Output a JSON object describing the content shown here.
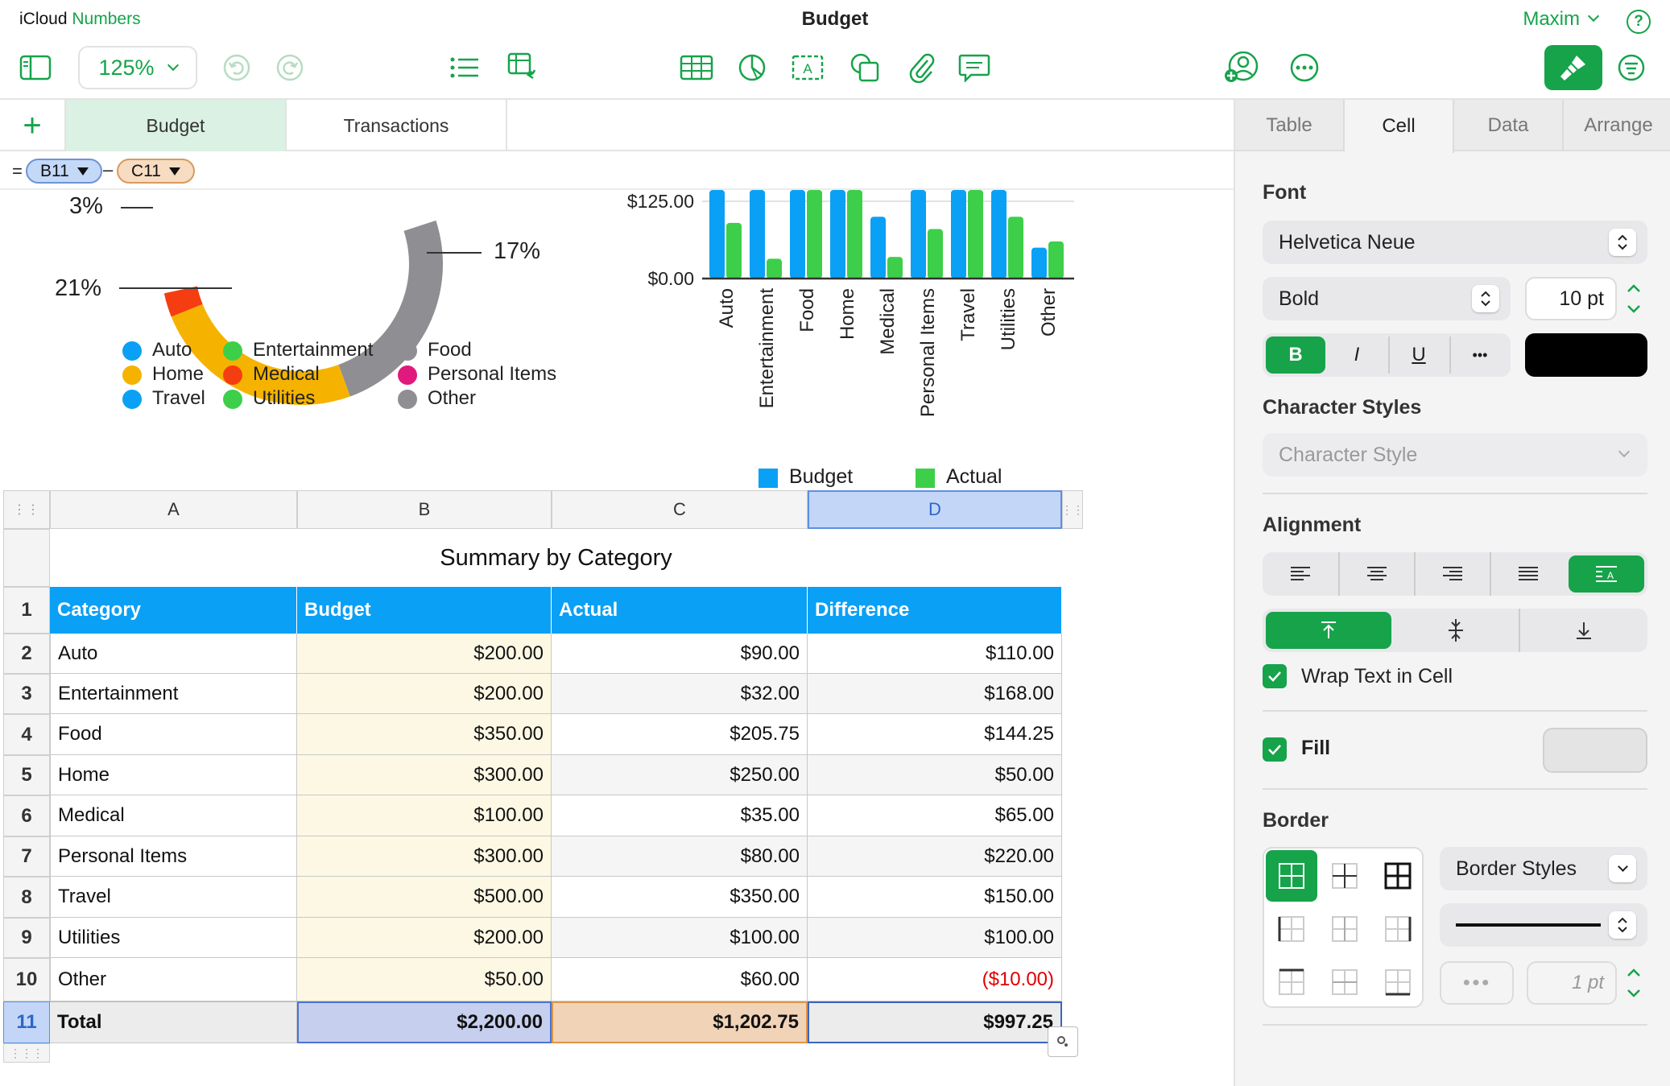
{
  "app": {
    "brand_prefix": "iCloud",
    "brand_name": "Numbers",
    "document_title": "Budget",
    "user_name": "Maxim",
    "help_label": "?"
  },
  "toolbar": {
    "zoom": "125%"
  },
  "sheets": {
    "add_label": "+",
    "tabs": [
      "Budget",
      "Transactions"
    ],
    "active": "Budget"
  },
  "formula": {
    "equals": "=",
    "operand1": "B11",
    "operator": "–",
    "operand2": "C11"
  },
  "donut": {
    "labels": [
      {
        "text": "3%"
      },
      {
        "text": "17%"
      },
      {
        "text": "21%"
      }
    ],
    "legend": [
      {
        "name": "Auto",
        "color": "#0aa0f5"
      },
      {
        "name": "Entertainment",
        "color": "#3dcf4a"
      },
      {
        "name": "Food",
        "color": "#8e8e93"
      },
      {
        "name": "Home",
        "color": "#f5b300"
      },
      {
        "name": "Medical",
        "color": "#f53d12"
      },
      {
        "name": "Personal Items",
        "color": "#e0197d"
      },
      {
        "name": "Travel",
        "color": "#0aa0f5"
      },
      {
        "name": "Utilities",
        "color": "#3dcf4a"
      },
      {
        "name": "Other",
        "color": "#8e8e93"
      }
    ]
  },
  "chart_data": {
    "type": "bar",
    "categories": [
      "Auto",
      "Entertainment",
      "Food",
      "Home",
      "Medical",
      "Personal Items",
      "Travel",
      "Utilities",
      "Other"
    ],
    "series": [
      {
        "name": "Budget",
        "color": "#0aa0f5",
        "values": [
          200,
          200,
          350,
          300,
          100,
          300,
          500,
          200,
          50
        ]
      },
      {
        "name": "Actual",
        "color": "#3dcf4a",
        "values": [
          90,
          32,
          205.75,
          250,
          35,
          80,
          350,
          100,
          60
        ]
      }
    ],
    "yticks": [
      "$125.00",
      "$0.00"
    ],
    "ylim_visible": [
      0,
      125
    ],
    "legend_position": "bottom"
  },
  "table": {
    "columns": [
      "A",
      "B",
      "C",
      "D"
    ],
    "title": "Summary by Category",
    "row_numbers": [
      "1",
      "2",
      "3",
      "4",
      "5",
      "6",
      "7",
      "8",
      "9",
      "10",
      "11"
    ],
    "headers": [
      "Category",
      "Budget",
      "Actual",
      "Difference"
    ],
    "rows": [
      [
        "Auto",
        "$200.00",
        "$90.00",
        "$110.00"
      ],
      [
        "Entertainment",
        "$200.00",
        "$32.00",
        "$168.00"
      ],
      [
        "Food",
        "$350.00",
        "$205.75",
        "$144.25"
      ],
      [
        "Home",
        "$300.00",
        "$250.00",
        "$50.00"
      ],
      [
        "Medical",
        "$100.00",
        "$35.00",
        "$65.00"
      ],
      [
        "Personal Items",
        "$300.00",
        "$80.00",
        "$220.00"
      ],
      [
        "Travel",
        "$500.00",
        "$350.00",
        "$150.00"
      ],
      [
        "Utilities",
        "$200.00",
        "$100.00",
        "$100.00"
      ],
      [
        "Other",
        "$50.00",
        "$60.00",
        "($10.00)"
      ]
    ],
    "total": [
      "Total",
      "$2,200.00",
      "$1,202.75",
      "$997.25"
    ]
  },
  "inspector": {
    "tabs": [
      "Table",
      "Cell",
      "Data",
      "Arrange"
    ],
    "active_tab": "Cell",
    "font_title": "Font",
    "font_family": "Helvetica Neue",
    "font_style": "Bold",
    "font_size": "10 pt",
    "bold": "B",
    "italic": "I",
    "underline": "U",
    "more": "•••",
    "text_color": "#000000",
    "char_styles_title": "Character Styles",
    "char_style": "Character Style",
    "alignment_title": "Alignment",
    "wrap_label": "Wrap Text in Cell",
    "fill_label": "Fill",
    "border_title": "Border",
    "border_styles": "Border Styles",
    "border_width": "1 pt"
  }
}
